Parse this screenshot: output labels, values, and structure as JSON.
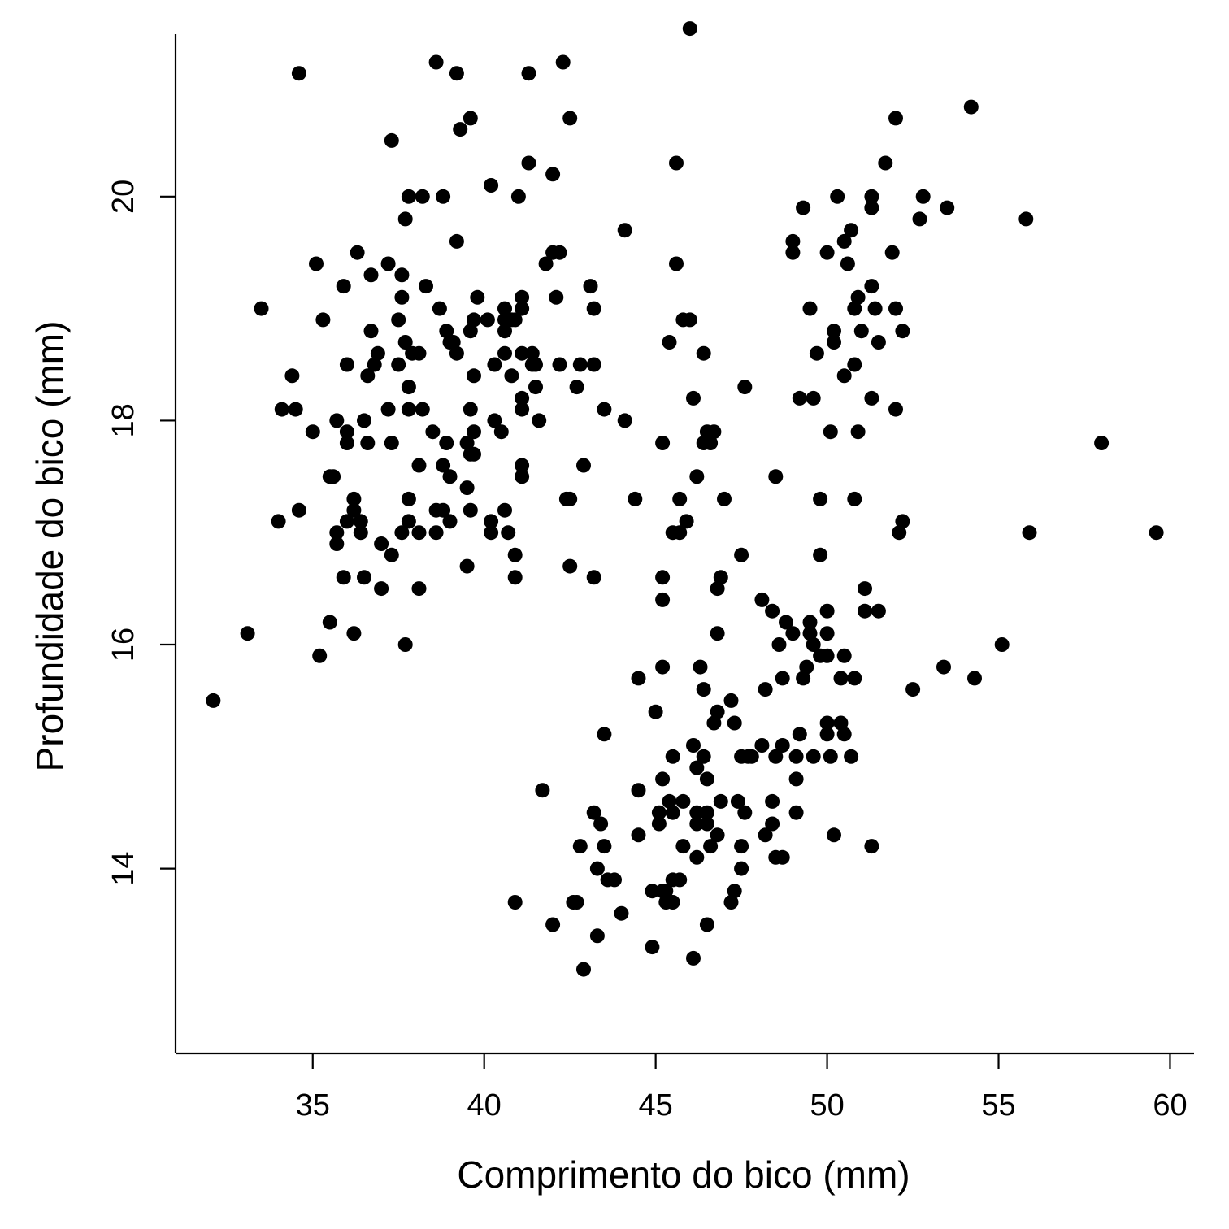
{
  "chart_data": {
    "type": "scatter",
    "xlabel": "Comprimento do bico (mm)",
    "ylabel": "Profundidade do bico (mm)",
    "xlim": [
      31,
      60.7
    ],
    "ylim": [
      12.35,
      21.45
    ],
    "xticks": [
      "35",
      "40",
      "45",
      "50",
      "55",
      "60"
    ],
    "yticks": [
      "14",
      "16",
      "18",
      "20"
    ],
    "xtick_values": [
      35,
      40,
      45,
      50,
      55,
      60
    ],
    "ytick_values": [
      14,
      16,
      18,
      20
    ],
    "grid": false,
    "marker_color": "#000000",
    "points": [
      [
        32.1,
        15.5
      ],
      [
        33.1,
        16.1
      ],
      [
        33.5,
        19.0
      ],
      [
        34.0,
        17.1
      ],
      [
        34.1,
        18.1
      ],
      [
        34.4,
        18.4
      ],
      [
        34.5,
        18.1
      ],
      [
        34.6,
        21.1
      ],
      [
        34.6,
        17.2
      ],
      [
        35.0,
        17.9
      ],
      [
        35.1,
        19.4
      ],
      [
        35.2,
        15.9
      ],
      [
        35.3,
        18.9
      ],
      [
        35.5,
        17.5
      ],
      [
        35.5,
        16.2
      ],
      [
        35.6,
        17.5
      ],
      [
        35.7,
        18.0
      ],
      [
        35.7,
        17.0
      ],
      [
        35.7,
        16.9
      ],
      [
        35.9,
        19.2
      ],
      [
        35.9,
        16.6
      ],
      [
        36.0,
        18.5
      ],
      [
        36.0,
        17.9
      ],
      [
        36.0,
        17.8
      ],
      [
        36.0,
        17.1
      ],
      [
        36.2,
        17.3
      ],
      [
        36.2,
        17.2
      ],
      [
        36.2,
        16.1
      ],
      [
        36.3,
        19.5
      ],
      [
        36.4,
        17.1
      ],
      [
        36.4,
        17.0
      ],
      [
        36.5,
        18.0
      ],
      [
        36.5,
        16.6
      ],
      [
        36.6,
        18.4
      ],
      [
        36.6,
        17.8
      ],
      [
        36.7,
        19.3
      ],
      [
        36.7,
        18.8
      ],
      [
        36.8,
        18.5
      ],
      [
        36.9,
        18.6
      ],
      [
        37.0,
        16.9
      ],
      [
        37.0,
        16.5
      ],
      [
        37.2,
        19.4
      ],
      [
        37.2,
        18.1
      ],
      [
        37.3,
        20.5
      ],
      [
        37.3,
        17.8
      ],
      [
        37.3,
        16.8
      ],
      [
        37.5,
        18.9
      ],
      [
        37.5,
        18.5
      ],
      [
        37.6,
        19.3
      ],
      [
        37.6,
        19.1
      ],
      [
        37.6,
        17.0
      ],
      [
        37.7,
        19.8
      ],
      [
        37.7,
        18.7
      ],
      [
        37.7,
        16.0
      ],
      [
        37.8,
        20.0
      ],
      [
        37.8,
        18.3
      ],
      [
        37.8,
        18.1
      ],
      [
        37.8,
        17.3
      ],
      [
        37.8,
        17.1
      ],
      [
        37.9,
        18.6
      ],
      [
        38.1,
        18.6
      ],
      [
        38.1,
        17.6
      ],
      [
        38.1,
        17.0
      ],
      [
        38.1,
        16.5
      ],
      [
        38.2,
        20.0
      ],
      [
        38.2,
        18.1
      ],
      [
        38.3,
        19.2
      ],
      [
        38.5,
        17.9
      ],
      [
        38.6,
        21.2
      ],
      [
        38.6,
        17.2
      ],
      [
        38.6,
        17.0
      ],
      [
        38.7,
        19.0
      ],
      [
        38.8,
        20.0
      ],
      [
        38.8,
        17.6
      ],
      [
        38.8,
        17.2
      ],
      [
        38.9,
        18.8
      ],
      [
        38.9,
        17.8
      ],
      [
        39.0,
        18.7
      ],
      [
        39.0,
        17.5
      ],
      [
        39.0,
        17.1
      ],
      [
        39.1,
        18.7
      ],
      [
        39.2,
        21.1
      ],
      [
        39.2,
        19.6
      ],
      [
        39.2,
        18.6
      ],
      [
        39.3,
        20.6
      ],
      [
        39.5,
        17.8
      ],
      [
        39.5,
        17.4
      ],
      [
        39.5,
        16.7
      ],
      [
        39.6,
        20.7
      ],
      [
        39.6,
        18.8
      ],
      [
        39.6,
        18.1
      ],
      [
        39.6,
        17.7
      ],
      [
        39.6,
        17.2
      ],
      [
        39.7,
        18.9
      ],
      [
        39.7,
        18.4
      ],
      [
        39.7,
        17.9
      ],
      [
        39.7,
        17.7
      ],
      [
        39.8,
        19.1
      ],
      [
        40.1,
        18.9
      ],
      [
        40.2,
        20.1
      ],
      [
        40.2,
        17.1
      ],
      [
        40.2,
        17.0
      ],
      [
        40.3,
        18.5
      ],
      [
        40.3,
        18.0
      ],
      [
        40.5,
        17.9
      ],
      [
        40.6,
        19.0
      ],
      [
        40.6,
        18.9
      ],
      [
        40.6,
        18.8
      ],
      [
        40.6,
        18.6
      ],
      [
        40.6,
        17.2
      ],
      [
        40.7,
        17.0
      ],
      [
        40.8,
        18.9
      ],
      [
        40.8,
        18.4
      ],
      [
        40.9,
        18.9
      ],
      [
        40.9,
        16.8
      ],
      [
        40.9,
        16.6
      ],
      [
        40.9,
        13.7
      ],
      [
        41.0,
        20.0
      ],
      [
        41.1,
        19.1
      ],
      [
        41.1,
        19.0
      ],
      [
        41.1,
        18.6
      ],
      [
        41.1,
        18.2
      ],
      [
        41.1,
        18.1
      ],
      [
        41.1,
        17.6
      ],
      [
        41.1,
        17.5
      ],
      [
        41.3,
        21.1
      ],
      [
        41.3,
        20.3
      ],
      [
        41.4,
        18.6
      ],
      [
        41.4,
        18.5
      ],
      [
        41.5,
        18.5
      ],
      [
        41.5,
        18.3
      ],
      [
        41.6,
        18.0
      ],
      [
        41.7,
        14.7
      ],
      [
        41.8,
        19.4
      ],
      [
        42.0,
        20.2
      ],
      [
        42.0,
        19.5
      ],
      [
        42.0,
        13.5
      ],
      [
        42.1,
        19.1
      ],
      [
        42.2,
        19.5
      ],
      [
        42.2,
        18.5
      ],
      [
        42.3,
        21.2
      ],
      [
        42.4,
        17.3
      ],
      [
        42.5,
        20.7
      ],
      [
        42.5,
        17.3
      ],
      [
        42.5,
        16.7
      ],
      [
        42.6,
        13.7
      ],
      [
        42.7,
        18.3
      ],
      [
        42.7,
        13.7
      ],
      [
        42.8,
        18.5
      ],
      [
        42.8,
        14.2
      ],
      [
        42.9,
        17.6
      ],
      [
        42.9,
        13.1
      ],
      [
        43.1,
        19.2
      ],
      [
        43.2,
        19.0
      ],
      [
        43.2,
        18.5
      ],
      [
        43.2,
        16.6
      ],
      [
        43.2,
        14.5
      ],
      [
        43.3,
        14.0
      ],
      [
        43.3,
        13.4
      ],
      [
        43.4,
        14.4
      ],
      [
        43.5,
        18.1
      ],
      [
        43.5,
        15.2
      ],
      [
        43.5,
        14.2
      ],
      [
        43.6,
        13.9
      ],
      [
        43.8,
        13.9
      ],
      [
        44.0,
        13.6
      ],
      [
        44.1,
        19.7
      ],
      [
        44.1,
        18.0
      ],
      [
        44.4,
        17.3
      ],
      [
        44.5,
        15.7
      ],
      [
        44.5,
        14.7
      ],
      [
        44.5,
        14.3
      ],
      [
        44.9,
        13.8
      ],
      [
        44.9,
        13.3
      ],
      [
        45.0,
        15.4
      ],
      [
        45.1,
        14.5
      ],
      [
        45.1,
        14.4
      ],
      [
        45.2,
        17.8
      ],
      [
        45.2,
        16.6
      ],
      [
        45.2,
        16.4
      ],
      [
        45.2,
        15.8
      ],
      [
        45.2,
        14.8
      ],
      [
        45.2,
        13.8
      ],
      [
        45.3,
        13.8
      ],
      [
        45.3,
        13.7
      ],
      [
        45.4,
        18.7
      ],
      [
        45.4,
        14.6
      ],
      [
        45.5,
        17.0
      ],
      [
        45.5,
        15.0
      ],
      [
        45.5,
        14.5
      ],
      [
        45.5,
        13.9
      ],
      [
        45.5,
        13.7
      ],
      [
        45.6,
        20.3
      ],
      [
        45.6,
        19.4
      ],
      [
        45.7,
        17.3
      ],
      [
        45.7,
        17.0
      ],
      [
        45.7,
        13.9
      ],
      [
        45.8,
        18.9
      ],
      [
        45.8,
        14.6
      ],
      [
        45.8,
        14.2
      ],
      [
        45.9,
        17.1
      ],
      [
        46.0,
        21.5
      ],
      [
        46.0,
        18.9
      ],
      [
        46.1,
        18.2
      ],
      [
        46.1,
        15.1
      ],
      [
        46.1,
        13.2
      ],
      [
        46.2,
        17.5
      ],
      [
        46.2,
        14.9
      ],
      [
        46.2,
        14.5
      ],
      [
        46.2,
        14.4
      ],
      [
        46.2,
        14.1
      ],
      [
        46.3,
        15.8
      ],
      [
        46.4,
        18.6
      ],
      [
        46.4,
        17.8
      ],
      [
        46.4,
        15.6
      ],
      [
        46.4,
        15.0
      ],
      [
        46.5,
        17.9
      ],
      [
        46.5,
        14.8
      ],
      [
        46.5,
        14.5
      ],
      [
        46.5,
        14.4
      ],
      [
        46.5,
        13.5
      ],
      [
        46.6,
        17.8
      ],
      [
        46.6,
        14.2
      ],
      [
        46.7,
        17.9
      ],
      [
        46.7,
        15.3
      ],
      [
        46.8,
        16.5
      ],
      [
        46.8,
        16.1
      ],
      [
        46.8,
        15.4
      ],
      [
        46.8,
        14.3
      ],
      [
        46.9,
        16.6
      ],
      [
        46.9,
        14.6
      ],
      [
        47.0,
        17.3
      ],
      [
        47.2,
        15.5
      ],
      [
        47.2,
        13.7
      ],
      [
        47.3,
        15.3
      ],
      [
        47.3,
        13.8
      ],
      [
        47.4,
        14.6
      ],
      [
        47.5,
        16.8
      ],
      [
        47.5,
        15.0
      ],
      [
        47.5,
        14.2
      ],
      [
        47.5,
        14.0
      ],
      [
        47.6,
        18.3
      ],
      [
        47.6,
        14.5
      ],
      [
        47.7,
        15.0
      ],
      [
        47.8,
        15.0
      ],
      [
        48.1,
        16.4
      ],
      [
        48.1,
        15.1
      ],
      [
        48.2,
        15.6
      ],
      [
        48.2,
        14.3
      ],
      [
        48.4,
        16.3
      ],
      [
        48.4,
        14.6
      ],
      [
        48.4,
        14.4
      ],
      [
        48.5,
        17.5
      ],
      [
        48.5,
        15.0
      ],
      [
        48.5,
        14.1
      ],
      [
        48.6,
        16.0
      ],
      [
        48.7,
        15.7
      ],
      [
        48.7,
        15.1
      ],
      [
        48.7,
        14.1
      ],
      [
        48.8,
        16.2
      ],
      [
        49.0,
        19.6
      ],
      [
        49.0,
        19.5
      ],
      [
        49.0,
        16.1
      ],
      [
        49.1,
        15.0
      ],
      [
        49.1,
        14.8
      ],
      [
        49.1,
        14.5
      ],
      [
        49.2,
        18.2
      ],
      [
        49.2,
        15.2
      ],
      [
        49.3,
        19.9
      ],
      [
        49.3,
        15.7
      ],
      [
        49.4,
        15.8
      ],
      [
        49.5,
        19.0
      ],
      [
        49.5,
        16.2
      ],
      [
        49.5,
        16.1
      ],
      [
        49.6,
        18.2
      ],
      [
        49.6,
        16.0
      ],
      [
        49.6,
        15.0
      ],
      [
        49.7,
        18.6
      ],
      [
        49.8,
        17.3
      ],
      [
        49.8,
        16.8
      ],
      [
        49.8,
        15.9
      ],
      [
        50.0,
        19.5
      ],
      [
        50.0,
        16.3
      ],
      [
        50.0,
        16.1
      ],
      [
        50.0,
        15.9
      ],
      [
        50.0,
        15.3
      ],
      [
        50.0,
        15.2
      ],
      [
        50.1,
        17.9
      ],
      [
        50.1,
        15.0
      ],
      [
        50.2,
        18.8
      ],
      [
        50.2,
        18.7
      ],
      [
        50.2,
        14.3
      ],
      [
        50.3,
        20.0
      ],
      [
        50.4,
        15.7
      ],
      [
        50.4,
        15.3
      ],
      [
        50.5,
        19.6
      ],
      [
        50.5,
        18.4
      ],
      [
        50.5,
        15.9
      ],
      [
        50.5,
        15.2
      ],
      [
        50.6,
        19.4
      ],
      [
        50.7,
        19.7
      ],
      [
        50.7,
        15.0
      ],
      [
        50.8,
        19.0
      ],
      [
        50.8,
        18.5
      ],
      [
        50.8,
        17.3
      ],
      [
        50.8,
        15.7
      ],
      [
        50.9,
        19.1
      ],
      [
        50.9,
        17.9
      ],
      [
        51.0,
        18.8
      ],
      [
        51.1,
        16.5
      ],
      [
        51.1,
        16.3
      ],
      [
        51.3,
        20.0
      ],
      [
        51.3,
        19.9
      ],
      [
        51.3,
        19.2
      ],
      [
        51.3,
        18.2
      ],
      [
        51.3,
        14.2
      ],
      [
        51.4,
        19.0
      ],
      [
        51.5,
        18.7
      ],
      [
        51.5,
        16.3
      ],
      [
        51.7,
        20.3
      ],
      [
        51.9,
        19.5
      ],
      [
        52.0,
        20.7
      ],
      [
        52.0,
        19.0
      ],
      [
        52.0,
        18.1
      ],
      [
        52.1,
        17.0
      ],
      [
        52.2,
        18.8
      ],
      [
        52.2,
        17.1
      ],
      [
        52.5,
        15.6
      ],
      [
        52.7,
        19.8
      ],
      [
        52.8,
        20.0
      ],
      [
        53.4,
        15.8
      ],
      [
        53.5,
        19.9
      ],
      [
        54.2,
        20.8
      ],
      [
        54.3,
        15.7
      ],
      [
        55.1,
        16.0
      ],
      [
        55.8,
        19.8
      ],
      [
        55.9,
        17.0
      ],
      [
        58.0,
        17.8
      ],
      [
        59.6,
        17.0
      ]
    ]
  }
}
